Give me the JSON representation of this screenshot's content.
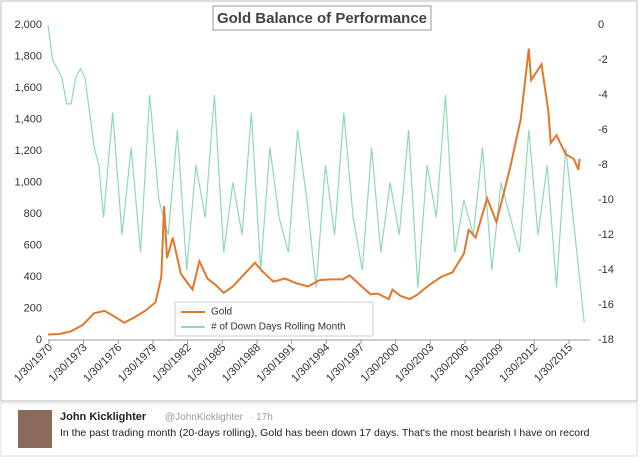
{
  "chart_data": {
    "type": "line",
    "title": "Gold Balance of Performance",
    "xlim": [
      1970,
      2016.9
    ],
    "xticks": [
      {
        "value": 1970.08,
        "label": "1/30/1970"
      },
      {
        "value": 1973.08,
        "label": "1/30/1973"
      },
      {
        "value": 1976.08,
        "label": "1/30/1976"
      },
      {
        "value": 1979.08,
        "label": "1/30/1979"
      },
      {
        "value": 1982.08,
        "label": "1/30/1982"
      },
      {
        "value": 1985.08,
        "label": "1/30/1985"
      },
      {
        "value": 1988.08,
        "label": "1/30/1988"
      },
      {
        "value": 1991.08,
        "label": "1/30/1991"
      },
      {
        "value": 1994.08,
        "label": "1/30/1994"
      },
      {
        "value": 1997.08,
        "label": "1/30/1997"
      },
      {
        "value": 2000.08,
        "label": "1/30/2000"
      },
      {
        "value": 2003.08,
        "label": "1/30/2003"
      },
      {
        "value": 2006.08,
        "label": "1/30/2006"
      },
      {
        "value": 2009.08,
        "label": "1/30/2009"
      },
      {
        "value": 2012.08,
        "label": "1/30/2012"
      },
      {
        "value": 2015.08,
        "label": "1/30/2015"
      }
    ],
    "ylim": [
      0,
      2000
    ],
    "yticks": [
      0,
      200,
      400,
      600,
      800,
      {
        "value": 1000,
        "label": "1,000"
      },
      {
        "value": 1200,
        "label": "1,200"
      },
      {
        "value": 1400,
        "label": "1,400"
      },
      {
        "value": 1600,
        "label": "1,600"
      },
      {
        "value": 1800,
        "label": "1,800"
      },
      {
        "value": 2000,
        "label": "2,000"
      }
    ],
    "y2lim": [
      -18,
      0
    ],
    "y2ticks": [
      -18,
      -16,
      -14,
      -12,
      -10,
      -8,
      -6,
      -4,
      -2,
      0
    ],
    "legend": "lower center",
    "series": [
      {
        "name": "# of Down Days Rolling Month",
        "color": "#8fd9b6",
        "axis": "y2",
        "x": [
          1970,
          1970.4,
          1970.8,
          1971.2,
          1971.6,
          1972,
          1972.4,
          1972.8,
          1973.2,
          1973.6,
          1974,
          1974.4,
          1974.8,
          1975.6,
          1976.4,
          1977.2,
          1978,
          1978.8,
          1979.6,
          1980.4,
          1981.2,
          1982,
          1982.8,
          1983.6,
          1984.4,
          1985.2,
          1986,
          1986.8,
          1987.6,
          1988.4,
          1989.2,
          1990,
          1990.8,
          1991.6,
          1992.4,
          1993.2,
          1994,
          1994.8,
          1995.6,
          1996.4,
          1997.2,
          1998,
          1998.8,
          1999.6,
          2000.4,
          2001.2,
          2002,
          2002.8,
          2003.6,
          2004.4,
          2005.2,
          2006,
          2006.8,
          2007.6,
          2008.4,
          2009.2,
          2010,
          2010.8,
          2011.6,
          2012.4,
          2013.2,
          2014,
          2014.8,
          2015.6,
          2016.4
        ],
        "values": [
          0,
          -2,
          -2.5,
          -3,
          -4.5,
          -4.5,
          -3,
          -2.5,
          -3,
          -5,
          -7,
          -8,
          -11,
          -5,
          -12,
          -7,
          -13,
          -4,
          -10,
          -12,
          -6,
          -14,
          -8,
          -11,
          -4,
          -13,
          -9,
          -12,
          -5,
          -14,
          -7,
          -11,
          -13,
          -6,
          -10,
          -15,
          -8,
          -12,
          -5,
          -11,
          -14,
          -7,
          -13,
          -9,
          -12,
          -6,
          -15,
          -8,
          -11,
          -4,
          -13,
          -10,
          -12,
          -7,
          -14,
          -9,
          -11,
          -13,
          -6,
          -12,
          -8,
          -15,
          -7,
          -12,
          -17
        ]
      },
      {
        "name": "Gold",
        "color": "#e0782c",
        "x": [
          1970,
          1971,
          1972,
          1973,
          1974,
          1974.9,
          1975.5,
          1976.6,
          1977.5,
          1978.5,
          1979.3,
          1979.8,
          1980.05,
          1980.3,
          1980.8,
          1981.5,
          1982.5,
          1983.1,
          1983.8,
          1984.5,
          1985.2,
          1986,
          1987,
          1987.9,
          1988.5,
          1989.5,
          1990.5,
          1991.5,
          1992.5,
          1993.5,
          1994.5,
          1995.5,
          1996.1,
          1997,
          1997.9,
          1998.5,
          1999.5,
          1999.8,
          2000.5,
          2001.3,
          2002,
          2003,
          2004,
          2005,
          2006,
          2006.4,
          2007,
          2008,
          2008.8,
          2009.5,
          2010,
          2010.9,
          2011.6,
          2011.8,
          2012.7,
          2013.3,
          2013.5,
          2014,
          2014.8,
          2015.5,
          2015.9,
          2016
        ],
        "values": [
          35,
          38,
          55,
          95,
          170,
          185,
          160,
          110,
          145,
          190,
          240,
          400,
          850,
          520,
          650,
          420,
          320,
          500,
          390,
          350,
          300,
          340,
          420,
          490,
          440,
          370,
          390,
          360,
          340,
          380,
          385,
          385,
          410,
          350,
          290,
          295,
          260,
          320,
          280,
          260,
          290,
          350,
          400,
          430,
          550,
          700,
          650,
          900,
          750,
          950,
          1100,
          1400,
          1850,
          1650,
          1750,
          1450,
          1250,
          1300,
          1180,
          1150,
          1080,
          1150
        ]
      }
    ]
  },
  "tweet": {
    "name": "John Kicklighter",
    "handle": "@JohnKicklighter",
    "time": "· 17h",
    "text": "In the past trading month (20-days rolling), Gold has been down 17 days. That's the most bearish I have on record"
  }
}
